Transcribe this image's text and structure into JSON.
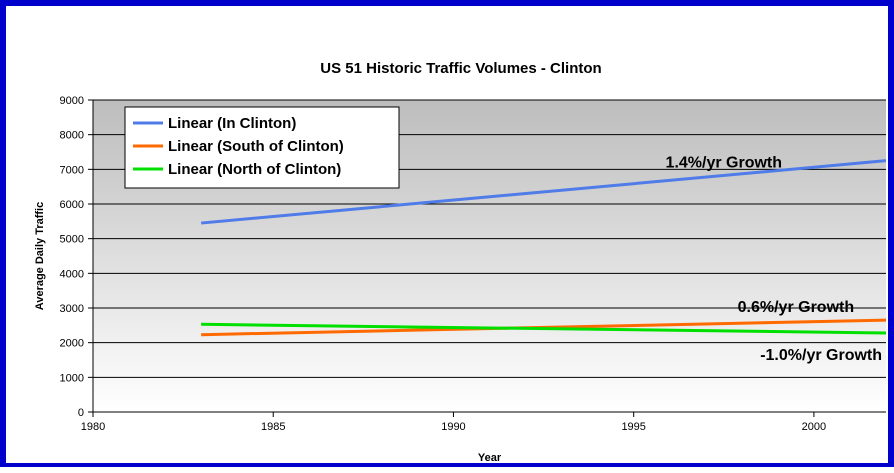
{
  "chart_data": {
    "type": "line",
    "title": "US 51 Historic Traffic Volumes - Clinton",
    "xlabel": "Year",
    "ylabel": "Average Daily Traffic",
    "xlim": [
      1980,
      2002
    ],
    "ylim": [
      0,
      9000
    ],
    "xticks": [
      1980,
      1985,
      1990,
      1995,
      2000
    ],
    "yticks": [
      0,
      1000,
      2000,
      3000,
      4000,
      5000,
      6000,
      7000,
      8000,
      9000
    ],
    "grid": "horizontal",
    "legend_position": "top-left",
    "series": [
      {
        "name": "Linear (In Clinton)",
        "color": "#4f7ce8",
        "x": [
          1983,
          2002
        ],
        "y": [
          5450,
          7250
        ]
      },
      {
        "name": "Linear (South of Clinton)",
        "color": "#ff6a00",
        "x": [
          1983,
          2002
        ],
        "y": [
          2230,
          2650
        ]
      },
      {
        "name": "Linear (North of Clinton)",
        "color": "#00e000",
        "x": [
          1983,
          2002
        ],
        "y": [
          2530,
          2280
        ]
      }
    ],
    "annotations": [
      {
        "text": "1.4%/yr Growth",
        "x": 1997.5,
        "y": 7050
      },
      {
        "text": "0.6%/yr Growth",
        "x": 1999.5,
        "y": 2880
      },
      {
        "text": "-1.0%/yr Growth",
        "x": 2000.2,
        "y": 1500
      }
    ]
  }
}
